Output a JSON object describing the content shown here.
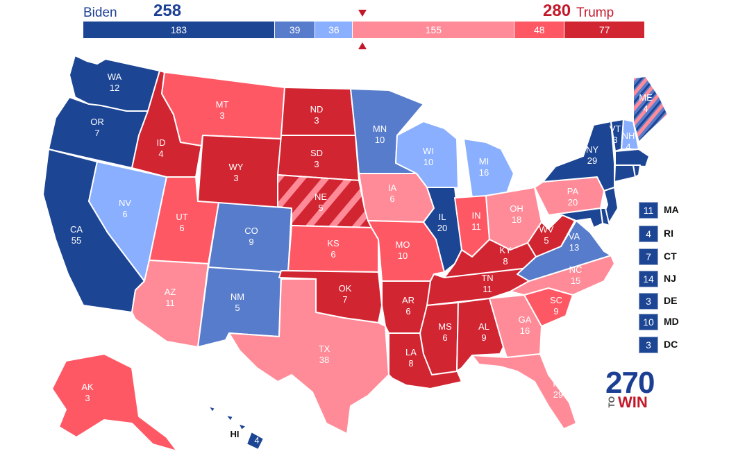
{
  "colors": {
    "safe_d": "#1c4594",
    "likely_d": "#577ccc",
    "lean_d": "#8aafff",
    "lean_r": "#ff8b98",
    "likely_r": "#ff5865",
    "safe_r": "#d22532"
  },
  "header": {
    "dem_name": "Biden",
    "dem_total": "258",
    "rep_total": "280",
    "rep_name": "Trump"
  },
  "bar": [
    {
      "value": "183",
      "rating": "safe_d",
      "ev": 183
    },
    {
      "value": "39",
      "rating": "likely_d",
      "ev": 39
    },
    {
      "value": "36",
      "rating": "lean_d",
      "ev": 36
    },
    {
      "value": "155",
      "rating": "lean_r",
      "ev": 155
    },
    {
      "value": "48",
      "rating": "likely_r",
      "ev": 48
    },
    {
      "value": "77",
      "rating": "safe_r",
      "ev": 77
    }
  ],
  "states": [
    {
      "abbr": "WA",
      "ev": "12",
      "rating": "safe_d"
    },
    {
      "abbr": "OR",
      "ev": "7",
      "rating": "safe_d"
    },
    {
      "abbr": "CA",
      "ev": "55",
      "rating": "safe_d"
    },
    {
      "abbr": "NV",
      "ev": "6",
      "rating": "lean_d"
    },
    {
      "abbr": "ID",
      "ev": "4",
      "rating": "safe_r"
    },
    {
      "abbr": "MT",
      "ev": "3",
      "rating": "likely_r"
    },
    {
      "abbr": "WY",
      "ev": "3",
      "rating": "safe_r"
    },
    {
      "abbr": "UT",
      "ev": "6",
      "rating": "likely_r"
    },
    {
      "abbr": "AZ",
      "ev": "11",
      "rating": "lean_r"
    },
    {
      "abbr": "CO",
      "ev": "9",
      "rating": "likely_d"
    },
    {
      "abbr": "NM",
      "ev": "5",
      "rating": "likely_d"
    },
    {
      "abbr": "ND",
      "ev": "3",
      "rating": "safe_r"
    },
    {
      "abbr": "SD",
      "ev": "3",
      "rating": "safe_r"
    },
    {
      "abbr": "NE",
      "ev": "5",
      "rating": "safe_r"
    },
    {
      "abbr": "KS",
      "ev": "6",
      "rating": "likely_r"
    },
    {
      "abbr": "OK",
      "ev": "7",
      "rating": "safe_r"
    },
    {
      "abbr": "TX",
      "ev": "38",
      "rating": "lean_r"
    },
    {
      "abbr": "MN",
      "ev": "10",
      "rating": "likely_d"
    },
    {
      "abbr": "IA",
      "ev": "6",
      "rating": "lean_r"
    },
    {
      "abbr": "MO",
      "ev": "10",
      "rating": "likely_r"
    },
    {
      "abbr": "AR",
      "ev": "6",
      "rating": "safe_r"
    },
    {
      "abbr": "LA",
      "ev": "8",
      "rating": "safe_r"
    },
    {
      "abbr": "WI",
      "ev": "10",
      "rating": "lean_d"
    },
    {
      "abbr": "IL",
      "ev": "20",
      "rating": "safe_d"
    },
    {
      "abbr": "MI",
      "ev": "16",
      "rating": "lean_d"
    },
    {
      "abbr": "IN",
      "ev": "11",
      "rating": "likely_r"
    },
    {
      "abbr": "OH",
      "ev": "18",
      "rating": "lean_r"
    },
    {
      "abbr": "KY",
      "ev": "8",
      "rating": "safe_r"
    },
    {
      "abbr": "TN",
      "ev": "11",
      "rating": "safe_r"
    },
    {
      "abbr": "MS",
      "ev": "6",
      "rating": "safe_r"
    },
    {
      "abbr": "AL",
      "ev": "9",
      "rating": "safe_r"
    },
    {
      "abbr": "GA",
      "ev": "16",
      "rating": "lean_r"
    },
    {
      "abbr": "FL",
      "ev": "29",
      "rating": "lean_r"
    },
    {
      "abbr": "SC",
      "ev": "9",
      "rating": "likely_r"
    },
    {
      "abbr": "NC",
      "ev": "15",
      "rating": "lean_r"
    },
    {
      "abbr": "VA",
      "ev": "13",
      "rating": "likely_d"
    },
    {
      "abbr": "WV",
      "ev": "5",
      "rating": "safe_r"
    },
    {
      "abbr": "PA",
      "ev": "20",
      "rating": "lean_r"
    },
    {
      "abbr": "NY",
      "ev": "29",
      "rating": "safe_d"
    },
    {
      "abbr": "VT",
      "ev": "3",
      "rating": "safe_d"
    },
    {
      "abbr": "NH",
      "ev": "4",
      "rating": "lean_d"
    },
    {
      "abbr": "ME",
      "ev": "4",
      "rating": "likely_d"
    },
    {
      "abbr": "AK",
      "ev": "3",
      "rating": "likely_r"
    },
    {
      "abbr": "HI",
      "ev": "4",
      "rating": "safe_d"
    }
  ],
  "northeast": [
    {
      "ev": "11",
      "abbr": "MA"
    },
    {
      "ev": "4",
      "abbr": "RI"
    },
    {
      "ev": "7",
      "abbr": "CT"
    },
    {
      "ev": "14",
      "abbr": "NJ"
    },
    {
      "ev": "3",
      "abbr": "DE"
    },
    {
      "ev": "10",
      "abbr": "MD"
    },
    {
      "ev": "3",
      "abbr": "DC"
    }
  ],
  "logo": {
    "number": "270",
    "to": "TO",
    "win": "WIN"
  }
}
